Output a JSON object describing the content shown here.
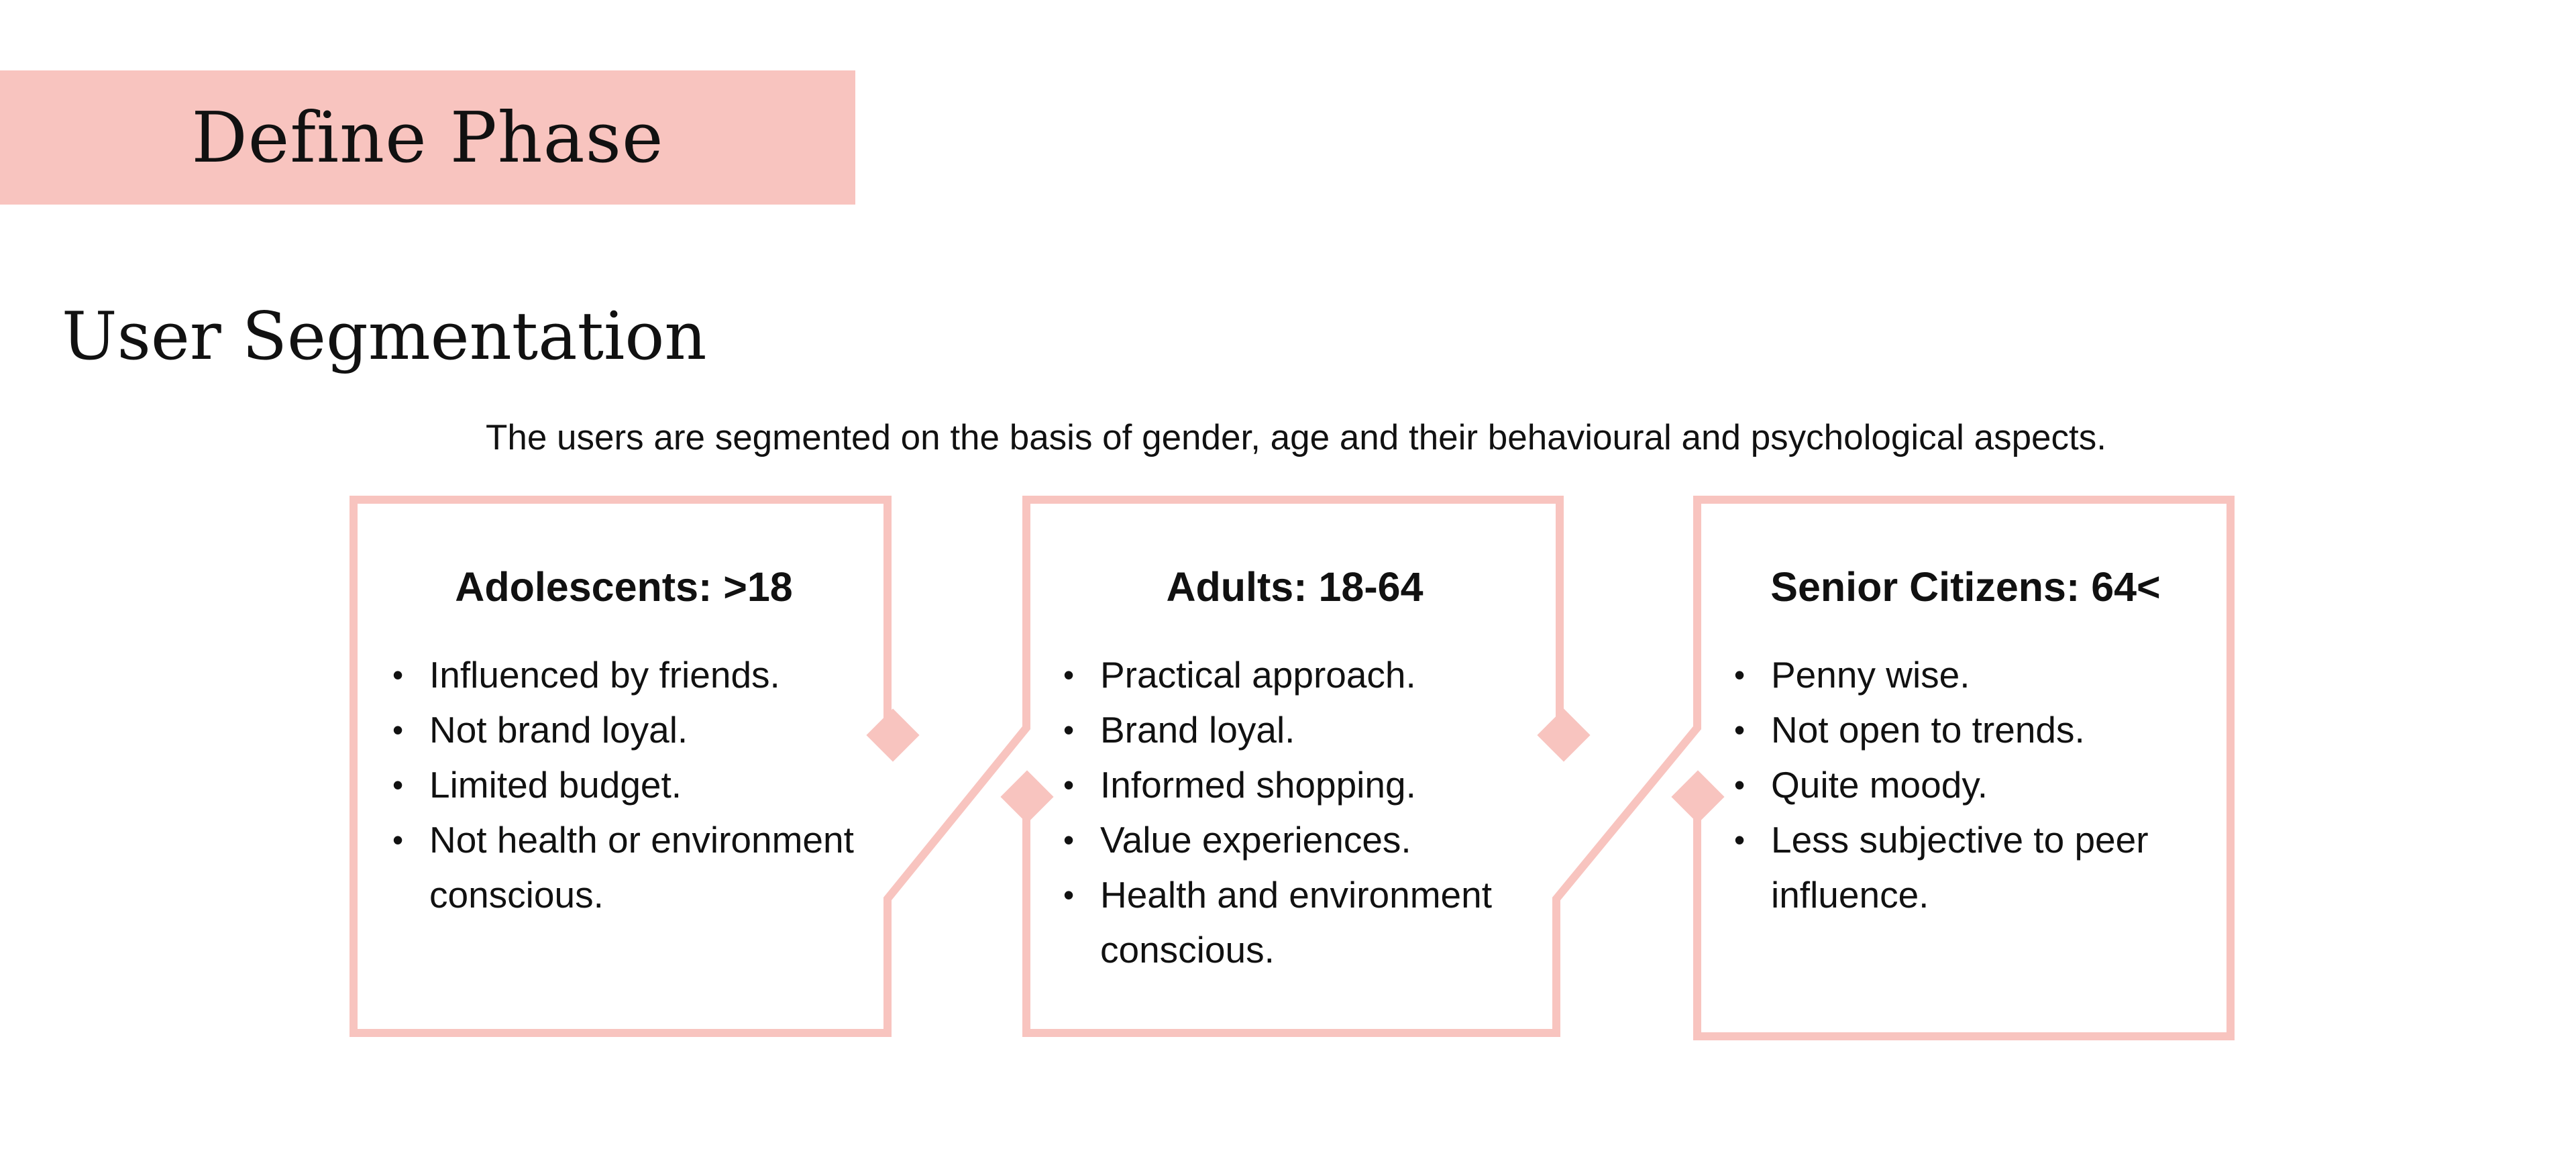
{
  "header": {
    "phase_title": "Define Phase"
  },
  "section": {
    "heading": "User Segmentation",
    "intro": "The users are segmented on the basis of gender, age and their behavioural and psychological aspects."
  },
  "segments": [
    {
      "title": "Adolescents: >18",
      "items": [
        "Influenced by friends.",
        "Not brand loyal.",
        "Limited budget.",
        "Not health or environment conscious."
      ]
    },
    {
      "title": "Adults: 18-64",
      "items": [
        "Practical approach.",
        "Brand loyal.",
        "Informed shopping.",
        "Value experiences.",
        "Health and environment conscious."
      ]
    },
    {
      "title": "Senior Citizens: 64<",
      "items": [
        "Penny wise.",
        "Not open to trends.",
        "Quite moody.",
        "Less subjective to peer influence."
      ]
    }
  ],
  "colors": {
    "accent": "#f8c4bf",
    "text": "#111111",
    "background": "#ffffff"
  }
}
